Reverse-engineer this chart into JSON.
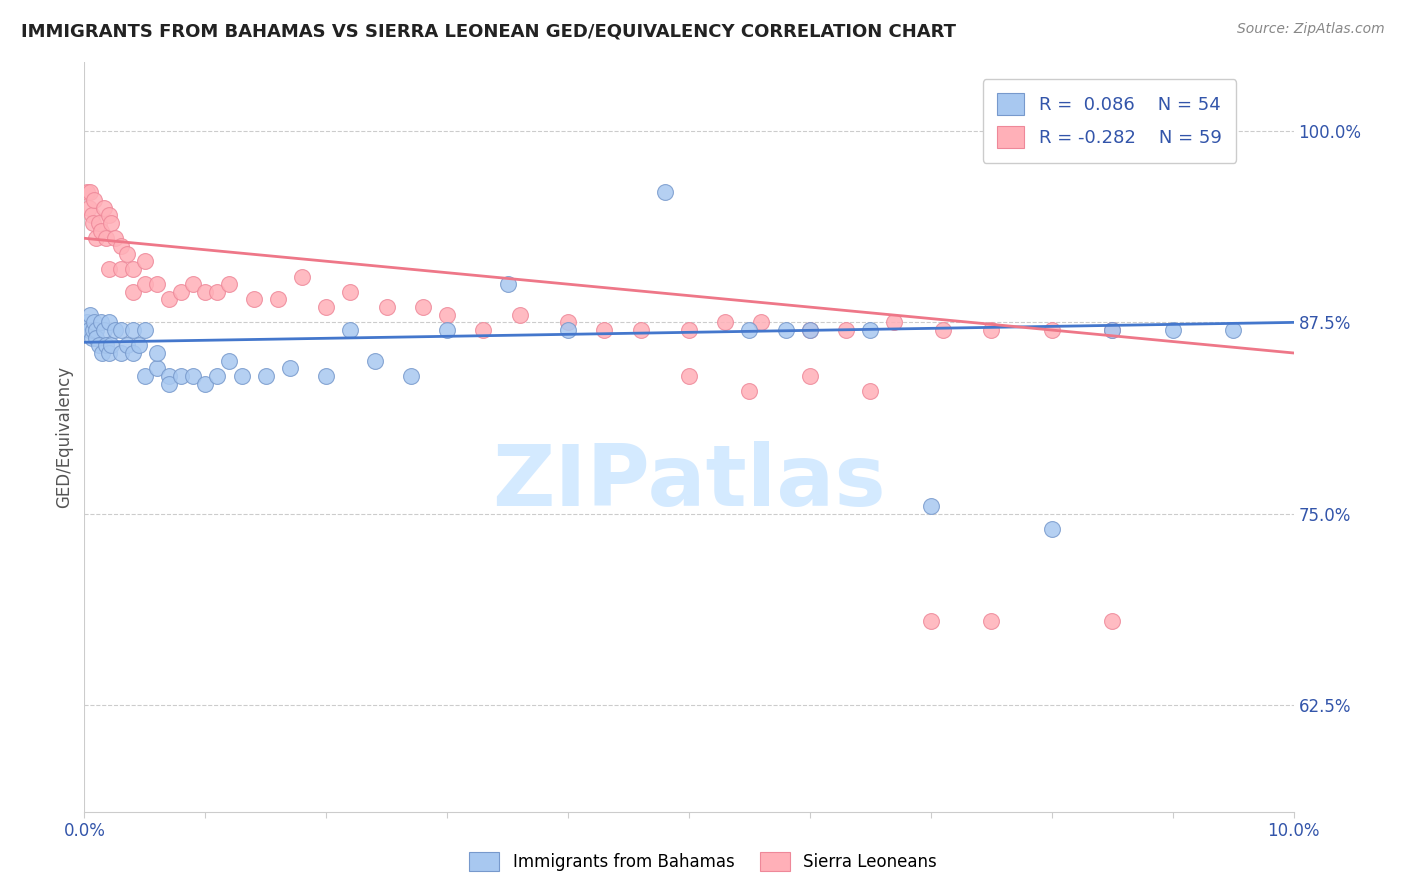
{
  "title": "IMMIGRANTS FROM BAHAMAS VS SIERRA LEONEAN GED/EQUIVALENCY CORRELATION CHART",
  "source": "Source: ZipAtlas.com",
  "ylabel": "GED/Equivalency",
  "legend_label1": "Immigrants from Bahamas",
  "legend_label2": "Sierra Leoneans",
  "blue_scatter_color": "#a8c8f0",
  "blue_scatter_edge": "#7799cc",
  "pink_scatter_color": "#ffb0b8",
  "pink_scatter_edge": "#ee8899",
  "blue_line_color": "#4477cc",
  "pink_line_color": "#ee7788",
  "watermark": "ZIPatlas",
  "watermark_color": "#d0e8ff",
  "xlim": [
    0.0,
    0.1
  ],
  "ylim": [
    0.555,
    1.045
  ],
  "y_ticks": [
    0.625,
    0.75,
    0.875,
    1.0
  ],
  "blue_x": [
    0.0002,
    0.0004,
    0.0005,
    0.0006,
    0.0007,
    0.0008,
    0.001,
    0.001,
    0.0012,
    0.0014,
    0.0015,
    0.0016,
    0.0018,
    0.002,
    0.002,
    0.0022,
    0.0025,
    0.003,
    0.003,
    0.0035,
    0.004,
    0.004,
    0.0045,
    0.005,
    0.005,
    0.006,
    0.006,
    0.007,
    0.007,
    0.008,
    0.009,
    0.01,
    0.011,
    0.012,
    0.013,
    0.015,
    0.017,
    0.02,
    0.022,
    0.024,
    0.027,
    0.03,
    0.035,
    0.04,
    0.048,
    0.055,
    0.058,
    0.06,
    0.065,
    0.07,
    0.08,
    0.085,
    0.09,
    0.095
  ],
  "blue_y": [
    0.875,
    0.87,
    0.88,
    0.865,
    0.87,
    0.875,
    0.87,
    0.865,
    0.86,
    0.875,
    0.855,
    0.87,
    0.86,
    0.875,
    0.855,
    0.86,
    0.87,
    0.87,
    0.855,
    0.86,
    0.87,
    0.855,
    0.86,
    0.84,
    0.87,
    0.845,
    0.855,
    0.84,
    0.835,
    0.84,
    0.84,
    0.835,
    0.84,
    0.85,
    0.84,
    0.84,
    0.845,
    0.84,
    0.87,
    0.85,
    0.84,
    0.87,
    0.9,
    0.87,
    0.96,
    0.87,
    0.87,
    0.87,
    0.87,
    0.755,
    0.74,
    0.87,
    0.87,
    0.87
  ],
  "pink_x": [
    0.0002,
    0.0004,
    0.0005,
    0.0006,
    0.0007,
    0.0008,
    0.001,
    0.0012,
    0.0014,
    0.0016,
    0.0018,
    0.002,
    0.002,
    0.0022,
    0.0025,
    0.003,
    0.003,
    0.0035,
    0.004,
    0.004,
    0.005,
    0.005,
    0.006,
    0.007,
    0.008,
    0.009,
    0.01,
    0.011,
    0.012,
    0.014,
    0.016,
    0.018,
    0.02,
    0.022,
    0.025,
    0.028,
    0.03,
    0.033,
    0.036,
    0.04,
    0.043,
    0.046,
    0.05,
    0.053,
    0.056,
    0.06,
    0.063,
    0.067,
    0.071,
    0.075,
    0.08,
    0.085,
    0.05,
    0.055,
    0.06,
    0.065,
    0.07,
    0.075,
    0.085
  ],
  "pink_y": [
    0.96,
    0.95,
    0.96,
    0.945,
    0.94,
    0.955,
    0.93,
    0.94,
    0.935,
    0.95,
    0.93,
    0.945,
    0.91,
    0.94,
    0.93,
    0.925,
    0.91,
    0.92,
    0.91,
    0.895,
    0.915,
    0.9,
    0.9,
    0.89,
    0.895,
    0.9,
    0.895,
    0.895,
    0.9,
    0.89,
    0.89,
    0.905,
    0.885,
    0.895,
    0.885,
    0.885,
    0.88,
    0.87,
    0.88,
    0.875,
    0.87,
    0.87,
    0.87,
    0.875,
    0.875,
    0.87,
    0.87,
    0.875,
    0.87,
    0.87,
    0.87,
    0.87,
    0.84,
    0.83,
    0.84,
    0.83,
    0.68,
    0.68,
    0.68
  ],
  "blue_trend_x": [
    0.0,
    0.1
  ],
  "blue_trend_y": [
    0.862,
    0.875
  ],
  "pink_trend_x": [
    0.0,
    0.1
  ],
  "pink_trend_y": [
    0.93,
    0.855
  ]
}
